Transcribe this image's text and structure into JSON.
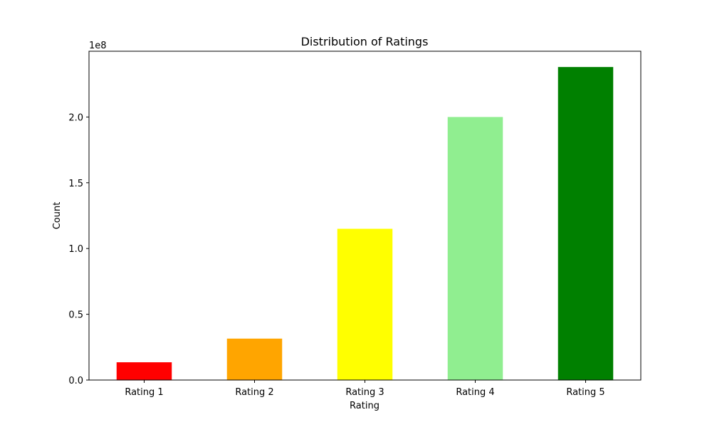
{
  "chart_data": {
    "type": "bar",
    "title": "Distribution of Ratings",
    "xlabel": "Rating",
    "ylabel": "Count",
    "offset_label": "1e8",
    "categories": [
      "Rating 1",
      "Rating 2",
      "Rating 3",
      "Rating 4",
      "Rating 5"
    ],
    "values": [
      13500000,
      31500000,
      115000000,
      200000000,
      238000000
    ],
    "colors": [
      "#ff0000",
      "#ffa500",
      "#ffff00",
      "#90ee90",
      "#008000"
    ],
    "ylim": [
      0,
      250000000
    ],
    "yticks": [
      0,
      50000000,
      100000000,
      150000000,
      200000000
    ],
    "ytick_labels": [
      "0.0",
      "0.5",
      "1.0",
      "1.5",
      "2.0"
    ],
    "grid": false,
    "legend": false
  }
}
